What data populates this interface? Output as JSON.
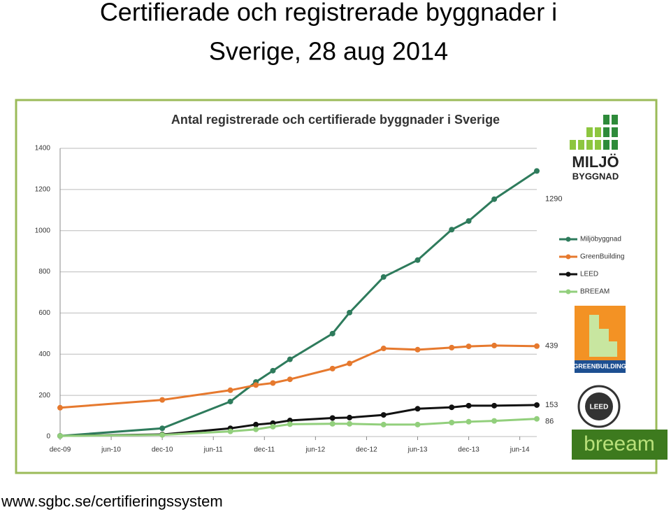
{
  "slide_title": [
    "Certifierade och registrerade byggnader i",
    "Sverige, 28 aug 2014"
  ],
  "footer": "www.sgbc.se/certifieringssystem",
  "logos": {
    "miljo": [
      "MILJÖ",
      "BYGGNAD"
    ],
    "greenbuilding": "GREENBUILDING",
    "leed": "LEED",
    "breeam": "breeam"
  },
  "chart_data": {
    "type": "line",
    "title": "Antal registrerade och certifierade byggnader i Sverige",
    "x": [
      "2009-12",
      "2010-12",
      "2011-08",
      "2011-11",
      "2012-01",
      "2012-03",
      "2012-08",
      "2012-10",
      "2013-02",
      "2013-06",
      "2013-10",
      "2013-12",
      "2014-03",
      "2014-08"
    ],
    "xlim": [
      "2009-12",
      "2014-08"
    ],
    "xticks": [
      {
        "value": "2009-12",
        "label": "dec-09"
      },
      {
        "value": "2010-06",
        "label": "jun-10"
      },
      {
        "value": "2010-12",
        "label": "dec-10"
      },
      {
        "value": "2011-06",
        "label": "jun-11"
      },
      {
        "value": "2011-12",
        "label": "dec-11"
      },
      {
        "value": "2012-06",
        "label": "jun-12"
      },
      {
        "value": "2012-12",
        "label": "dec-12"
      },
      {
        "value": "2013-06",
        "label": "jun-13"
      },
      {
        "value": "2013-12",
        "label": "dec-13"
      },
      {
        "value": "2014-06",
        "label": "jun-14"
      }
    ],
    "ylim": [
      0,
      1400
    ],
    "yticks": [
      0,
      200,
      400,
      600,
      800,
      1000,
      1200,
      1400
    ],
    "grid": true,
    "series": [
      {
        "name": "Miljöbyggnad",
        "color": "#2e7b5c",
        "values": [
          3,
          40,
          170,
          265,
          320,
          375,
          500,
          602,
          775,
          857,
          1005,
          1047,
          1153,
          1290
        ]
      },
      {
        "name": "GreenBuilding",
        "color": "#e6792e",
        "values": [
          140,
          178,
          225,
          250,
          260,
          278,
          330,
          355,
          428,
          422,
          432,
          438,
          442,
          439
        ]
      },
      {
        "name": "LEED",
        "color": "#111111",
        "values": [
          3,
          10,
          40,
          58,
          65,
          78,
          90,
          92,
          105,
          135,
          142,
          150,
          150,
          153
        ]
      },
      {
        "name": "BREEAM",
        "color": "#92cf7c",
        "values": [
          3,
          8,
          25,
          35,
          48,
          60,
          62,
          62,
          58,
          58,
          68,
          72,
          76,
          86
        ]
      }
    ]
  }
}
